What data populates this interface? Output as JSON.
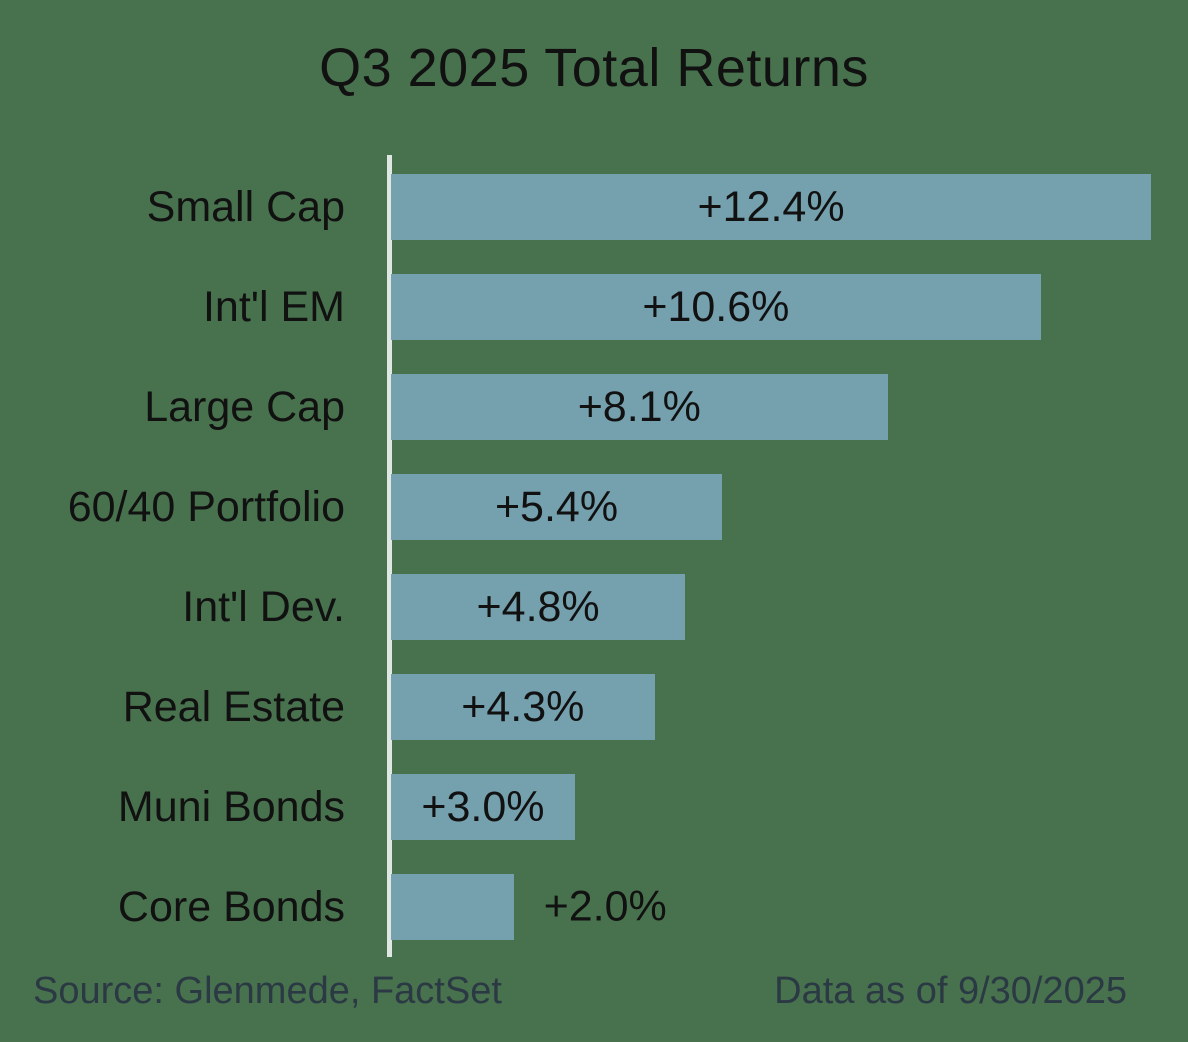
{
  "title": "Q3 2025 Total Returns",
  "footer": {
    "source": "Source: Glenmede, FactSet",
    "as_of": "Data as of 9/30/2025"
  },
  "colors": {
    "background": "#48724e",
    "bar": "#75a0ae",
    "axis_line": "#dfe7e2",
    "text": "#111111",
    "footer_text": "#2b3944"
  },
  "chart_data": {
    "type": "bar",
    "orientation": "horizontal",
    "title": "Q3 2025 Total Returns",
    "categories": [
      "Small Cap",
      "Int'l EM",
      "Large Cap",
      "60/40 Portfolio",
      "Int'l Dev.",
      "Real Estate",
      "Muni Bonds",
      "Core Bonds"
    ],
    "values": [
      12.4,
      10.6,
      8.1,
      5.4,
      4.8,
      4.3,
      3.0,
      2.0
    ],
    "value_labels": [
      "+12.4%",
      "+10.6%",
      "+8.1%",
      "+5.4%",
      "+4.8%",
      "+4.3%",
      "+3.0%",
      "+2.0%"
    ],
    "xlabel": "",
    "ylabel": "",
    "xlim": [
      0,
      13
    ],
    "grid": false,
    "legend": "none",
    "sort": "descending",
    "bar_value_label_position": "inside-center, outside-right when bar too short"
  }
}
